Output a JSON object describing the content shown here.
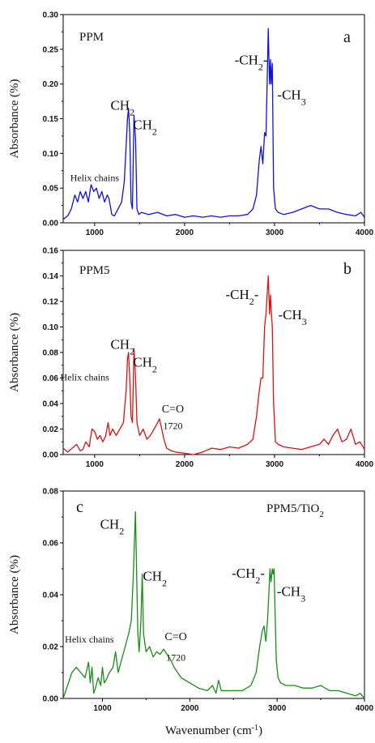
{
  "chart_data": [
    {
      "type": "line",
      "panel_letter": "a",
      "sample_label": "PPM",
      "ylabel": "Absorbance (%)",
      "xlim": [
        650,
        4000
      ],
      "ylim": [
        0,
        0.3
      ],
      "yticks": [
        "0.00",
        "0.05",
        "0.10",
        "0.15",
        "0.20",
        "0.25",
        "0.30"
      ],
      "xticks": [
        "1000",
        "2000",
        "3000",
        "4000"
      ],
      "color": "#1010e0",
      "annotations": [
        {
          "text": "Helix chains",
          "x": 1000,
          "y": 0.06
        },
        {
          "text": "CH",
          "sub": "2",
          "x": 1310,
          "y": 0.163
        },
        {
          "text": "CH",
          "sub": "2",
          "x": 1560,
          "y": 0.135
        },
        {
          "text": "-CH",
          "sub": "2",
          "tail": "-",
          "x": 2740,
          "y": 0.228
        },
        {
          "text": "-CH",
          "sub": "3",
          "x": 3190,
          "y": 0.178
        }
      ],
      "series": [
        {
          "x": [
            650,
            700,
            740,
            780,
            810,
            840,
            870,
            900,
            930,
            960,
            990,
            1020,
            1050,
            1080,
            1110,
            1140,
            1160,
            1190,
            1220,
            1260,
            1300,
            1330,
            1350,
            1365,
            1377,
            1390,
            1405,
            1420,
            1437,
            1455,
            1470,
            1490,
            1520,
            1600,
            1700,
            1800,
            1900,
            2000,
            2100,
            2200,
            2300,
            2400,
            2500,
            2600,
            2700,
            2760,
            2800,
            2830,
            2850,
            2870,
            2890,
            2905,
            2918,
            2930,
            2945,
            2955,
            2962,
            2975,
            2990,
            3010,
            3040,
            3100,
            3200,
            3300,
            3400,
            3500,
            3600,
            3700,
            3800,
            3900,
            3960,
            4000
          ],
          "y": [
            0.005,
            0.01,
            0.02,
            0.04,
            0.03,
            0.045,
            0.035,
            0.045,
            0.03,
            0.055,
            0.045,
            0.05,
            0.035,
            0.045,
            0.03,
            0.04,
            0.035,
            0.012,
            0.01,
            0.02,
            0.03,
            0.06,
            0.11,
            0.15,
            0.165,
            0.13,
            0.03,
            0.02,
            0.155,
            0.12,
            0.02,
            0.012,
            0.015,
            0.012,
            0.015,
            0.01,
            0.012,
            0.008,
            0.01,
            0.008,
            0.01,
            0.008,
            0.01,
            0.01,
            0.012,
            0.02,
            0.04,
            0.09,
            0.11,
            0.085,
            0.13,
            0.125,
            0.2,
            0.28,
            0.2,
            0.235,
            0.2,
            0.23,
            0.05,
            0.02,
            0.015,
            0.012,
            0.015,
            0.02,
            0.025,
            0.02,
            0.02,
            0.015,
            0.012,
            0.01,
            0.015,
            0.008
          ]
        }
      ]
    },
    {
      "type": "line",
      "panel_letter": "b",
      "sample_label": "PPM5",
      "ylabel": "Absorbance (%)",
      "xlim": [
        650,
        4000
      ],
      "ylim": [
        0,
        0.16
      ],
      "yticks": [
        "0.00",
        "0.02",
        "0.04",
        "0.06",
        "0.08",
        "0.10",
        "0.12",
        "0.14",
        "0.16"
      ],
      "xticks": [
        "1000",
        "2000",
        "3000",
        "4000"
      ],
      "color": "#e01010",
      "annotations": [
        {
          "text": "Helix chains",
          "x": 890,
          "y": 0.058
        },
        {
          "text": "CH",
          "sub": "2",
          "x": 1310,
          "y": 0.083
        },
        {
          "text": "CH",
          "sub": "2",
          "x": 1560,
          "y": 0.069
        },
        {
          "text": "C=O",
          "x": 1870,
          "y": 0.033
        },
        {
          "text": "1720",
          "x": 1870,
          "y": 0.02
        },
        {
          "text": "-CH",
          "sub": "2",
          "tail": "-",
          "x": 2640,
          "y": 0.122
        },
        {
          "text": "-CH",
          "sub": "3",
          "x": 3200,
          "y": 0.106
        }
      ],
      "series": [
        {
          "x": [
            650,
            700,
            750,
            800,
            840,
            870,
            900,
            940,
            970,
            1000,
            1030,
            1060,
            1090,
            1120,
            1150,
            1170,
            1200,
            1240,
            1280,
            1320,
            1350,
            1365,
            1377,
            1390,
            1405,
            1420,
            1437,
            1455,
            1470,
            1500,
            1540,
            1580,
            1620,
            1660,
            1700,
            1720,
            1740,
            1770,
            1800,
            1850,
            1900,
            2000,
            2100,
            2200,
            2300,
            2400,
            2500,
            2600,
            2700,
            2760,
            2800,
            2830,
            2850,
            2870,
            2890,
            2905,
            2918,
            2930,
            2945,
            2955,
            2962,
            2975,
            2990,
            3010,
            3040,
            3100,
            3200,
            3300,
            3400,
            3500,
            3550,
            3600,
            3650,
            3700,
            3750,
            3800,
            3850,
            3900,
            3950,
            4000
          ],
          "y": [
            0.005,
            0.002,
            0.005,
            0.008,
            0.003,
            0.004,
            0.01,
            0.006,
            0.02,
            0.018,
            0.012,
            0.015,
            0.01,
            0.014,
            0.025,
            0.015,
            0.02,
            0.015,
            0.02,
            0.025,
            0.05,
            0.075,
            0.08,
            0.06,
            0.03,
            0.025,
            0.083,
            0.06,
            0.025,
            0.015,
            0.02,
            0.012,
            0.015,
            0.02,
            0.025,
            0.028,
            0.022,
            0.012,
            0.005,
            0.003,
            0.002,
            0.001,
            0.0,
            0.002,
            0.005,
            0.004,
            0.006,
            0.005,
            0.008,
            0.012,
            0.03,
            0.05,
            0.06,
            0.06,
            0.1,
            0.11,
            0.125,
            0.14,
            0.11,
            0.125,
            0.115,
            0.1,
            0.04,
            0.01,
            0.008,
            0.006,
            0.005,
            0.004,
            0.006,
            0.008,
            0.012,
            0.008,
            0.015,
            0.02,
            0.01,
            0.012,
            0.02,
            0.008,
            0.01,
            0.004
          ]
        }
      ]
    },
    {
      "type": "line",
      "panel_letter": "c",
      "sample_label": "PPM5/TiO",
      "sample_label_sub": "2",
      "ylabel": "Absorbance (%)",
      "xlabel": "Wavenumber (cm",
      "xlabel_sup": "-1",
      "xlabel_tail": ")",
      "xlim": [
        550,
        4000
      ],
      "ylim": [
        0,
        0.08
      ],
      "yticks": [
        "0.00",
        "0.02",
        "0.04",
        "0.06",
        "0.08"
      ],
      "xticks": [
        "1000",
        "2000",
        "3000",
        "4000"
      ],
      "color": "#1a8c1a",
      "annotations": [
        {
          "text": "Helix chains",
          "x": 850,
          "y": 0.0215
        },
        {
          "text": "CH",
          "sub": "2",
          "x": 1110,
          "y": 0.0655
        },
        {
          "text": "CH",
          "sub": "2",
          "x": 1600,
          "y": 0.0455
        },
        {
          "text": "C=O",
          "x": 1840,
          "y": 0.0225
        },
        {
          "text": "1720",
          "x": 1840,
          "y": 0.0145
        },
        {
          "text": "-CH",
          "sub": "2",
          "tail": "-",
          "x": 2670,
          "y": 0.0465
        },
        {
          "text": "-CH",
          "sub": "3",
          "x": 3160,
          "y": 0.0395
        }
      ],
      "series": [
        {
          "x": [
            550,
            600,
            650,
            700,
            750,
            800,
            840,
            860,
            880,
            900,
            920,
            950,
            980,
            1000,
            1020,
            1040,
            1080,
            1120,
            1150,
            1180,
            1220,
            1260,
            1300,
            1330,
            1350,
            1365,
            1377,
            1390,
            1405,
            1420,
            1440,
            1455,
            1470,
            1500,
            1540,
            1580,
            1620,
            1660,
            1700,
            1740,
            1780,
            1820,
            1860,
            1900,
            2000,
            2100,
            2200,
            2260,
            2300,
            2330,
            2360,
            2400,
            2500,
            2600,
            2700,
            2760,
            2800,
            2830,
            2850,
            2870,
            2890,
            2905,
            2918,
            2930,
            2945,
            2955,
            2965,
            2975,
            2990,
            3010,
            3040,
            3100,
            3200,
            3300,
            3400,
            3500,
            3600,
            3700,
            3800,
            3900,
            3950,
            4000
          ],
          "y": [
            0.0,
            0.005,
            0.01,
            0.012,
            0.01,
            0.008,
            0.014,
            0.006,
            0.012,
            0.002,
            0.004,
            0.008,
            0.005,
            0.012,
            0.006,
            0.007,
            0.01,
            0.012,
            0.018,
            0.01,
            0.015,
            0.02,
            0.025,
            0.03,
            0.045,
            0.06,
            0.072,
            0.05,
            0.025,
            0.018,
            0.03,
            0.048,
            0.025,
            0.018,
            0.02,
            0.016,
            0.018,
            0.017,
            0.019,
            0.017,
            0.015,
            0.012,
            0.01,
            0.008,
            0.006,
            0.004,
            0.003,
            0.005,
            0.002,
            0.007,
            0.003,
            0.003,
            0.003,
            0.003,
            0.005,
            0.01,
            0.02,
            0.026,
            0.028,
            0.022,
            0.03,
            0.04,
            0.05,
            0.045,
            0.05,
            0.048,
            0.05,
            0.035,
            0.015,
            0.008,
            0.006,
            0.005,
            0.005,
            0.004,
            0.004,
            0.005,
            0.003,
            0.003,
            0.002,
            0.001,
            0.002,
            0.0
          ]
        }
      ]
    }
  ]
}
